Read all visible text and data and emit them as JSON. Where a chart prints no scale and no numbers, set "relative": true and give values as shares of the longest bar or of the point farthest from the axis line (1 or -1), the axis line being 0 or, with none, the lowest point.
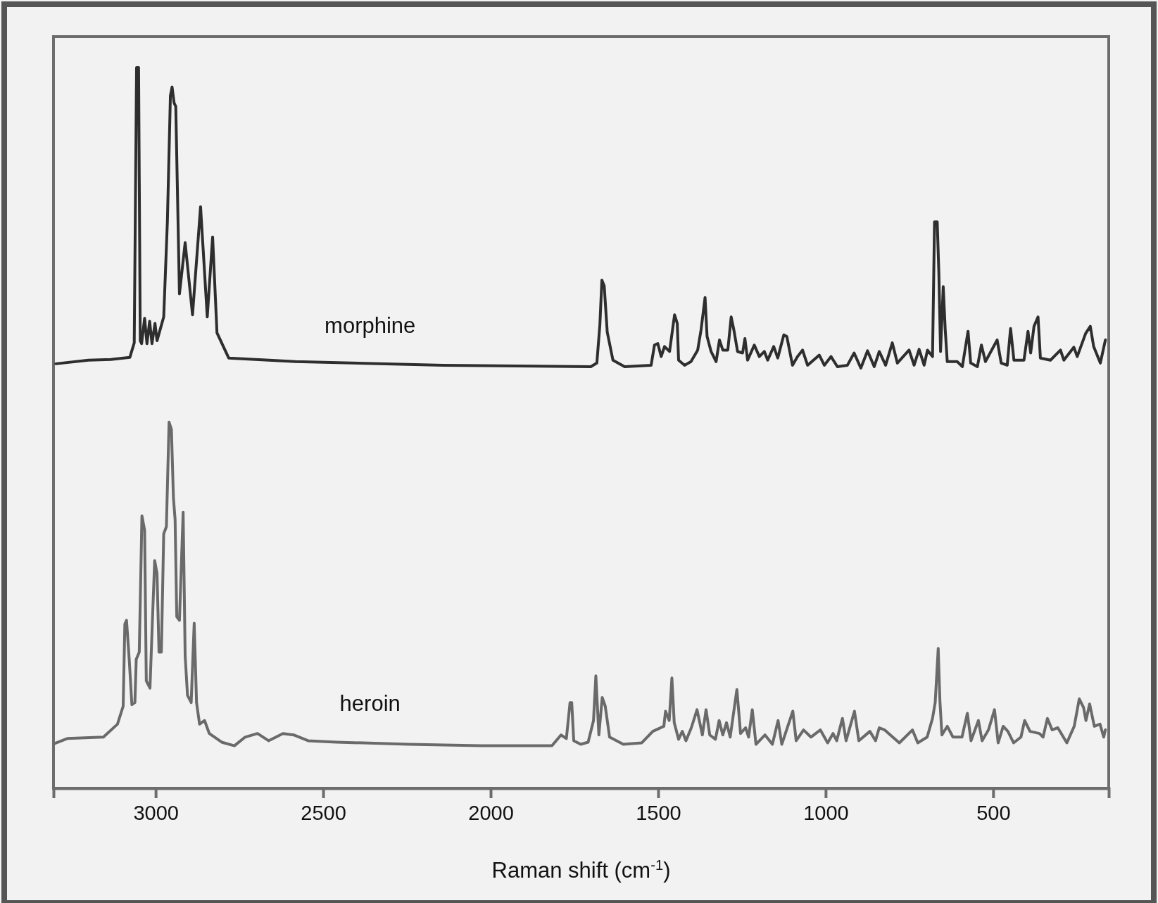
{
  "chart_data": {
    "type": "line",
    "xlabel": "Raman shift (cm$^{-1}$)",
    "relative": true,
    "xlim": [
      3305,
      155
    ],
    "xticks": [
      3000,
      2500,
      2000,
      1500,
      1000,
      500
    ],
    "legend": false,
    "grid": false,
    "marker": "none",
    "line_style": "solid",
    "series": [
      {
        "name": "morphine",
        "color": "#2e2e2e",
        "x": [
          3298,
          3201,
          3134,
          3077,
          3064,
          3057,
          3051,
          3046,
          3042,
          3033,
          3026,
          3018,
          3011,
          3002,
          2996,
          2976,
          2965,
          2956,
          2951,
          2945,
          2940,
          2929,
          2912,
          2890,
          2866,
          2846,
          2830,
          2817,
          2782,
          2583,
          2142,
          1701,
          1683,
          1674,
          1668,
          1661,
          1652,
          1635,
          1600,
          1521,
          1511,
          1501,
          1491,
          1481,
          1466,
          1451,
          1443,
          1439,
          1421,
          1402,
          1382,
          1372,
          1360,
          1354,
          1342,
          1327,
          1317,
          1307,
          1292,
          1282,
          1274,
          1263,
          1248,
          1241,
          1233,
          1213,
          1198,
          1183,
          1173,
          1155,
          1143,
          1125,
          1116,
          1099,
          1084,
          1069,
          1054,
          1019,
          1004,
          984,
          965,
          935,
          915,
          895,
          875,
          855,
          840,
          821,
          801,
          786,
          751,
          736,
          721,
          706,
          696,
          681,
          675,
          667,
          662,
          657,
          649,
          643,
          637,
          607,
          592,
          575,
          567,
          547,
          535,
          523,
          488,
          476,
          458,
          448,
          438,
          408,
          396,
          388,
          378,
          366,
          359,
          329,
          299,
          289,
          259,
          249,
          224,
          210,
          200,
          180,
          165
        ],
        "values": [
          0.589,
          0.594,
          0.595,
          0.598,
          0.618,
          1.0,
          1.0,
          0.621,
          0.617,
          0.652,
          0.617,
          0.648,
          0.617,
          0.645,
          0.621,
          0.654,
          0.787,
          0.961,
          0.973,
          0.951,
          0.946,
          0.686,
          0.757,
          0.657,
          0.807,
          0.654,
          0.765,
          0.632,
          0.597,
          0.592,
          0.587,
          0.585,
          0.59,
          0.643,
          0.705,
          0.697,
          0.633,
          0.594,
          0.585,
          0.587,
          0.615,
          0.617,
          0.599,
          0.613,
          0.606,
          0.657,
          0.645,
          0.594,
          0.587,
          0.592,
          0.608,
          0.636,
          0.681,
          0.627,
          0.606,
          0.592,
          0.622,
          0.608,
          0.608,
          0.654,
          0.636,
          0.606,
          0.604,
          0.624,
          0.594,
          0.615,
          0.599,
          0.606,
          0.594,
          0.613,
          0.597,
          0.629,
          0.627,
          0.587,
          0.599,
          0.608,
          0.587,
          0.601,
          0.587,
          0.599,
          0.585,
          0.587,
          0.604,
          0.583,
          0.607,
          0.585,
          0.606,
          0.587,
          0.618,
          0.59,
          0.608,
          0.587,
          0.609,
          0.587,
          0.608,
          0.599,
          0.786,
          0.786,
          0.714,
          0.606,
          0.696,
          0.636,
          0.592,
          0.592,
          0.585,
          0.634,
          0.59,
          0.585,
          0.615,
          0.592,
          0.622,
          0.59,
          0.587,
          0.638,
          0.594,
          0.594,
          0.634,
          0.604,
          0.641,
          0.654,
          0.597,
          0.594,
          0.608,
          0.594,
          0.612,
          0.599,
          0.631,
          0.641,
          0.613,
          0.59,
          0.622
        ]
      },
      {
        "name": "heroin",
        "color": "#6a6a6a",
        "x": [
          3303,
          3264,
          3156,
          3114,
          3097,
          3092,
          3087,
          3079,
          3071,
          3062,
          3058,
          3049,
          3041,
          3033,
          3028,
          3017,
          3010,
          3003,
          2996,
          2990,
          2983,
          2976,
          2968,
          2960,
          2953,
          2947,
          2942,
          2937,
          2929,
          2918,
          2912,
          2905,
          2894,
          2885,
          2878,
          2869,
          2854,
          2840,
          2803,
          2765,
          2733,
          2696,
          2663,
          2620,
          2588,
          2545,
          2460,
          2245,
          2031,
          1817,
          1790,
          1774,
          1763,
          1758,
          1752,
          1731,
          1709,
          1693,
          1686,
          1677,
          1667,
          1658,
          1645,
          1604,
          1549,
          1516,
          1483,
          1478,
          1467,
          1459,
          1452,
          1439,
          1428,
          1417,
          1401,
          1384,
          1368,
          1357,
          1346,
          1329,
          1318,
          1307,
          1296,
          1285,
          1265,
          1254,
          1239,
          1230,
          1219,
          1208,
          1181,
          1159,
          1142,
          1131,
          1098,
          1088,
          1066,
          1044,
          1016,
          994,
          978,
          967,
          950,
          939,
          914,
          901,
          868,
          851,
          840,
          824,
          807,
          780,
          741,
          725,
          697,
          681,
          673,
          664,
          659,
          653,
          637,
          620,
          593,
          577,
          566,
          544,
          533,
          514,
          496,
          485,
          470,
          456,
          439,
          417,
          406,
          390,
          362,
          351,
          338,
          324,
          307,
          280,
          258,
          243,
          230,
          223,
          212,
          198,
          181,
          170,
          165
        ],
        "values": [
          0.062,
          0.069,
          0.071,
          0.089,
          0.114,
          0.228,
          0.233,
          0.179,
          0.116,
          0.119,
          0.179,
          0.189,
          0.378,
          0.358,
          0.149,
          0.139,
          0.229,
          0.316,
          0.298,
          0.189,
          0.189,
          0.353,
          0.363,
          0.508,
          0.498,
          0.403,
          0.373,
          0.238,
          0.233,
          0.383,
          0.184,
          0.129,
          0.119,
          0.229,
          0.119,
          0.089,
          0.094,
          0.076,
          0.064,
          0.059,
          0.071,
          0.076,
          0.066,
          0.076,
          0.074,
          0.066,
          0.064,
          0.061,
          0.059,
          0.059,
          0.074,
          0.069,
          0.119,
          0.119,
          0.066,
          0.061,
          0.064,
          0.094,
          0.156,
          0.074,
          0.126,
          0.114,
          0.071,
          0.061,
          0.063,
          0.079,
          0.086,
          0.107,
          0.094,
          0.153,
          0.091,
          0.068,
          0.079,
          0.066,
          0.084,
          0.109,
          0.074,
          0.109,
          0.074,
          0.068,
          0.094,
          0.074,
          0.091,
          0.071,
          0.137,
          0.076,
          0.084,
          0.071,
          0.109,
          0.061,
          0.074,
          0.061,
          0.094,
          0.061,
          0.107,
          0.066,
          0.081,
          0.071,
          0.081,
          0.063,
          0.076,
          0.066,
          0.097,
          0.066,
          0.107,
          0.066,
          0.079,
          0.066,
          0.084,
          0.081,
          0.074,
          0.063,
          0.081,
          0.063,
          0.071,
          0.097,
          0.119,
          0.194,
          0.122,
          0.074,
          0.086,
          0.071,
          0.071,
          0.104,
          0.066,
          0.094,
          0.066,
          0.081,
          0.109,
          0.063,
          0.086,
          0.079,
          0.063,
          0.071,
          0.094,
          0.079,
          0.076,
          0.071,
          0.097,
          0.081,
          0.084,
          0.063,
          0.086,
          0.124,
          0.112,
          0.094,
          0.117,
          0.086,
          0.089,
          0.071,
          0.081
        ]
      }
    ]
  }
}
